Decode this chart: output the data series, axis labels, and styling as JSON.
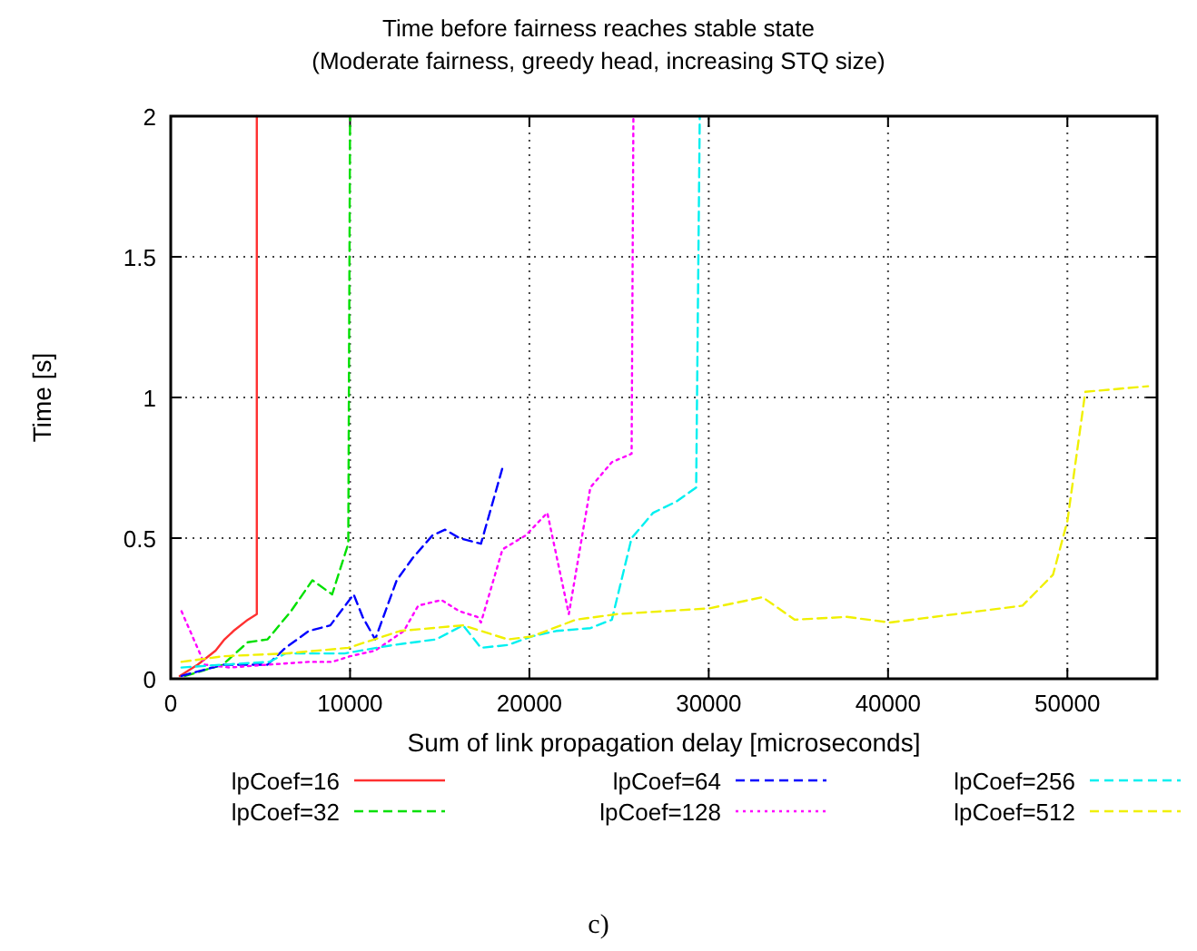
{
  "chart_data": {
    "type": "line",
    "title": "Time before fairness reaches stable state",
    "subtitle": "(Moderate fairness, greedy head, increasing STQ size)",
    "xlabel": "Sum of link propagation delay [microseconds]",
    "ylabel": "Time [s]",
    "xlim": [
      0,
      55000
    ],
    "xticks": [
      0,
      10000,
      20000,
      30000,
      40000,
      50000
    ],
    "ylim": [
      0,
      2
    ],
    "yticks": [
      0,
      0.5,
      1,
      1.5,
      2
    ],
    "grid": true,
    "legend": "bottom",
    "annotations": [
      "c)"
    ],
    "series": [
      {
        "name": "lpCoef=16",
        "color": "#ff3030",
        "line_style": "solid",
        "x": [
          500,
          1500,
          2500,
          3000,
          3500,
          4300,
          4800,
          4800
        ],
        "values": [
          0.01,
          0.05,
          0.1,
          0.14,
          0.17,
          0.21,
          0.23,
          2
        ]
      },
      {
        "name": "lpCoef=32",
        "color": "#00e000",
        "line_style": "dashed",
        "x": [
          800,
          2900,
          4300,
          5400,
          6700,
          7900,
          9000,
          9900,
          10000
        ],
        "values": [
          0.01,
          0.05,
          0.13,
          0.14,
          0.24,
          0.35,
          0.3,
          0.48,
          2
        ]
      },
      {
        "name": "lpCoef=64",
        "color": "#0000ff",
        "line_style": "dashed",
        "x": [
          600,
          2900,
          5400,
          6400,
          7700,
          8900,
          10200,
          10700,
          11400,
          12600,
          13500,
          14600,
          15300,
          16100,
          17300,
          18500
        ],
        "values": [
          0.01,
          0.05,
          0.05,
          0.11,
          0.17,
          0.19,
          0.3,
          0.22,
          0.14,
          0.35,
          0.43,
          0.51,
          0.53,
          0.5,
          0.48,
          0.75
        ]
      },
      {
        "name": "lpCoef=128",
        "color": "#ff00ff",
        "line_style": "dotted",
        "x": [
          600,
          1900,
          3300,
          5400,
          7700,
          9000,
          10000,
          11400,
          13000,
          13800,
          15100,
          16100,
          17100,
          17300,
          18500,
          19800,
          21000,
          22200,
          23400,
          24600,
          25700,
          25800
        ],
        "values": [
          0.24,
          0.05,
          0.04,
          0.05,
          0.06,
          0.06,
          0.08,
          0.1,
          0.17,
          0.26,
          0.28,
          0.24,
          0.22,
          0.2,
          0.46,
          0.51,
          0.59,
          0.23,
          0.68,
          0.77,
          0.8,
          2
        ]
      },
      {
        "name": "lpCoef=256",
        "color": "#00f0f0",
        "line_style": "dashed",
        "x": [
          600,
          2900,
          5500,
          6400,
          9700,
          12400,
          14800,
          16300,
          17300,
          18800,
          20100,
          21500,
          23400,
          24600,
          25700,
          26900,
          28200,
          29300,
          29500
        ],
        "values": [
          0.04,
          0.05,
          0.06,
          0.09,
          0.09,
          0.12,
          0.14,
          0.19,
          0.11,
          0.12,
          0.15,
          0.17,
          0.18,
          0.21,
          0.5,
          0.59,
          0.63,
          0.68,
          2
        ]
      },
      {
        "name": "lpCoef=512",
        "color": "#f0f000",
        "line_style": "dashed",
        "x": [
          600,
          2900,
          6400,
          9900,
          12800,
          16300,
          18800,
          20100,
          22600,
          24900,
          30000,
          33000,
          34800,
          37700,
          40100,
          43800,
          47500,
          49200,
          50000,
          51000,
          54500
        ],
        "values": [
          0.06,
          0.08,
          0.09,
          0.11,
          0.17,
          0.19,
          0.14,
          0.15,
          0.21,
          0.23,
          0.25,
          0.29,
          0.21,
          0.22,
          0.2,
          0.23,
          0.26,
          0.37,
          0.56,
          1.02,
          1.04
        ]
      }
    ]
  }
}
